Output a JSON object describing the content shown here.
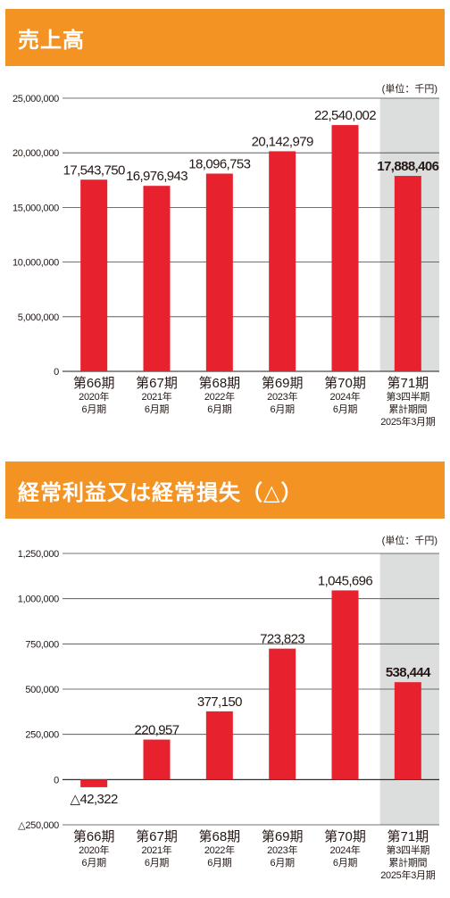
{
  "colors": {
    "accent": "#f39323",
    "bar": "#e8212e",
    "highlight_bg": "#dcdddd",
    "grid": "#444444"
  },
  "charts": [
    {
      "title": "売上高"
    },
    {
      "title": "経常利益又は経常損失（△）"
    }
  ],
  "chart_data": [
    {
      "type": "bar",
      "title": "売上高",
      "unit_label": "(単位：千円)",
      "categories": [
        "第66期",
        "第67期",
        "第68期",
        "第69期",
        "第70期",
        "第71期"
      ],
      "category_sublabels": [
        [
          "2020年",
          "6月期"
        ],
        [
          "2021年",
          "6月期"
        ],
        [
          "2022年",
          "6月期"
        ],
        [
          "2023年",
          "6月期"
        ],
        [
          "2024年",
          "6月期"
        ],
        [
          "第3四半期",
          "累計期間",
          "2025年3月期"
        ]
      ],
      "values": [
        17543750,
        16976943,
        18096753,
        20142979,
        22540002,
        17888406
      ],
      "value_labels": [
        "17,543,750",
        "16,976,943",
        "18,096,753",
        "20,142,979",
        "22,540,002",
        "17,888,406"
      ],
      "yticks": [
        0,
        5000000,
        10000000,
        15000000,
        20000000,
        25000000
      ],
      "ytick_labels": [
        "0",
        "5,000,000",
        "10,000,000",
        "15,000,000",
        "20,000,000",
        "25,000,000"
      ],
      "ylim": [
        0,
        25000000
      ],
      "highlight_index": 5,
      "grid": true
    },
    {
      "type": "bar",
      "title": "経常利益又は経常損失（△）",
      "unit_label": "(単位：千円)",
      "categories": [
        "第66期",
        "第67期",
        "第68期",
        "第69期",
        "第70期",
        "第71期"
      ],
      "category_sublabels": [
        [
          "2020年",
          "6月期"
        ],
        [
          "2021年",
          "6月期"
        ],
        [
          "2022年",
          "6月期"
        ],
        [
          "2023年",
          "6月期"
        ],
        [
          "2024年",
          "6月期"
        ],
        [
          "第3四半期",
          "累計期間",
          "2025年3月期"
        ]
      ],
      "values": [
        -42322,
        220957,
        377150,
        723823,
        1045696,
        538444
      ],
      "value_labels": [
        "△42,322",
        "220,957",
        "377,150",
        "723,823",
        "1,045,696",
        "538,444"
      ],
      "yticks": [
        -250000,
        0,
        250000,
        500000,
        750000,
        1000000,
        1250000
      ],
      "ytick_labels": [
        "△250,000",
        "0",
        "250,000",
        "500,000",
        "750,000",
        "1,000,000",
        "1,250,000"
      ],
      "ylim": [
        -250000,
        1250000
      ],
      "highlight_index": 5,
      "grid": true
    }
  ]
}
